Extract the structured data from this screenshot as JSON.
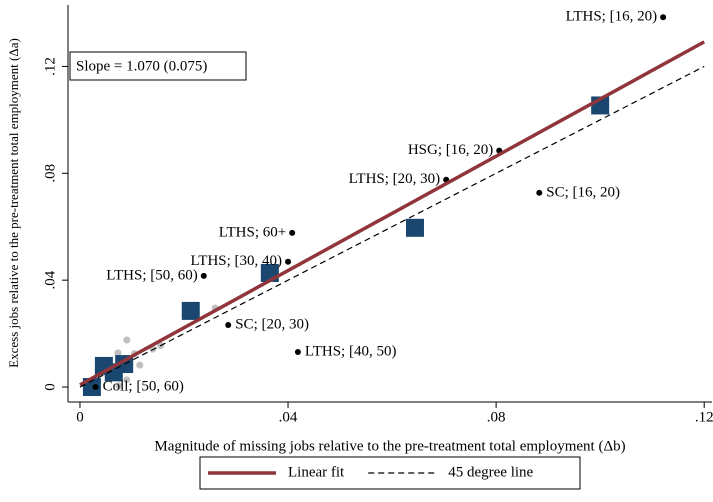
{
  "chart_data": {
    "type": "scatter",
    "xlabel": "Magnitude of missing jobs relative to the pre-treatment total employment (Δb)",
    "ylabel": "Excess jobs relative to the pre-treatment total employment (Δa)",
    "annotation": "Slope = 1.070 (0.075)",
    "xlim": [
      -0.0023,
      0.1215
    ],
    "ylim": [
      -0.0056,
      0.143
    ],
    "xticks": [
      0,
      {
        "value": 0.04,
        "label": ".04"
      },
      {
        "value": 0.08,
        "label": ".08"
      },
      {
        "value": 0.12,
        "label": ".12"
      }
    ],
    "yticks": [
      0,
      {
        "value": 0.04,
        "label": ".04"
      },
      {
        "value": 0.08,
        "label": ".08"
      },
      {
        "value": 0.12,
        "label": ".12"
      }
    ],
    "legend": "bottom",
    "series": [
      {
        "type": "scatter",
        "marker": "circle",
        "color": "#c0c0c0",
        "x": [
          0.009,
          0.026,
          0.014,
          0.0073,
          0.0058,
          0.009,
          0.0115,
          0.0035,
          0.0105,
          0.0155,
          0.0075
        ],
        "y": [
          0.0176,
          0.0296,
          0.0142,
          0.0128,
          0.0035,
          0.0027,
          0.0082,
          0.0065,
          0.0125,
          0.0155,
          0.0005
        ]
      },
      {
        "type": "scatter",
        "marker": "square",
        "color": "#1a476f",
        "x": [
          0.1,
          0.0644,
          0.0365,
          0.0213,
          0.0046,
          0.0085,
          0.0065,
          0.0023
        ],
        "y": [
          0.1054,
          0.0596,
          0.0427,
          0.0285,
          0.0079,
          0.0086,
          0.0055,
          0.0
        ]
      },
      {
        "type": "scatter",
        "marker": "dot",
        "color": "#000000",
        "x": [
          0.1121,
          0.0806,
          0.0704,
          0.0883,
          0.0408,
          0.04,
          0.0238,
          0.0285,
          0.0419,
          0.003
        ],
        "y": [
          0.1384,
          0.0885,
          0.0776,
          0.0727,
          0.0577,
          0.0469,
          0.0416,
          0.0232,
          0.0131,
          0.0
        ],
        "labels": [
          "LTHS; [16, 20)",
          "HSG; [16, 20)",
          "LTHS; [20, 30)",
          "SC; [16, 20)",
          "LTHS; 60+",
          "LTHS; [30, 40)",
          "LTHS; [50, 60)",
          "SC; [20, 30)",
          "LTHS; [40, 50)",
          "Coll; [50, 60)"
        ],
        "label_sides": [
          "left",
          "left",
          "left",
          "right",
          "left",
          "left",
          "left",
          "right",
          "right",
          "right"
        ]
      },
      {
        "type": "line",
        "name": "Linear fit",
        "color": "#90353b",
        "dash": "solid",
        "x": [
          0,
          0.12
        ],
        "y": [
          0.0008,
          0.1292
        ]
      },
      {
        "type": "line",
        "name": "45 degree line",
        "color": "#000000",
        "dash": "dashed",
        "x": [
          0,
          0.12
        ],
        "y": [
          0,
          0.12
        ]
      }
    ]
  }
}
